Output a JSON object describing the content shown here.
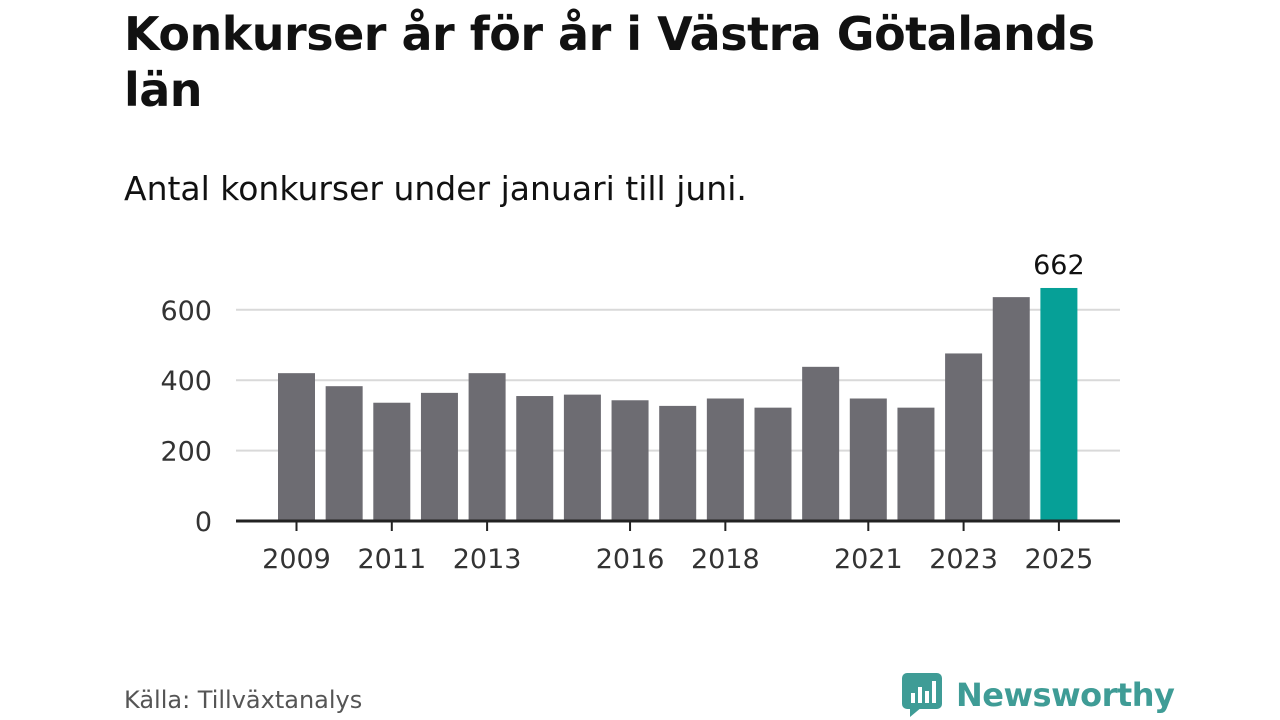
{
  "header": {
    "title": "Konkurser år för år i Västra Götalands län",
    "subtitle": "Antal konkurser under januari till juni."
  },
  "footer": {
    "source": "Källa: Tillväxtanalys",
    "brand": "Newsworthy"
  },
  "colors": {
    "bar": "#6d6c72",
    "highlight": "#06a097",
    "grid": "#d9d9d9",
    "axis": "#222222",
    "brand": "#3f9c96"
  },
  "chart_data": {
    "type": "bar",
    "categories": [
      "2009",
      "2010",
      "2011",
      "2012",
      "2013",
      "2014",
      "2015",
      "2016",
      "2017",
      "2018",
      "2019",
      "2020",
      "2021",
      "2022",
      "2023",
      "2024",
      "2025"
    ],
    "values": [
      420,
      383,
      336,
      364,
      420,
      355,
      359,
      343,
      327,
      348,
      322,
      438,
      348,
      322,
      476,
      636,
      662
    ],
    "tick_labels_x": [
      "2009",
      "2011",
      "2013",
      "2016",
      "2018",
      "2021",
      "2023",
      "2025"
    ],
    "ylim": [
      0,
      700
    ],
    "yticks": [
      0,
      200,
      400,
      600
    ],
    "highlight_index": 16,
    "data_labels": [
      {
        "index": 16,
        "text": "662"
      }
    ],
    "xlabel": "",
    "ylabel": "",
    "grid": true
  }
}
